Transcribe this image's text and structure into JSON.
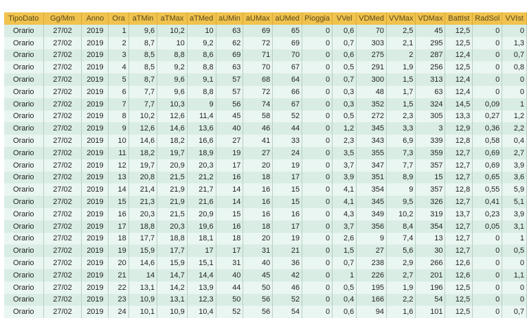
{
  "columns": [
    "TipoDato",
    "Gg/Mm",
    "Anno",
    "Ora",
    "aTMin",
    "aTMax",
    "aTMed",
    "aUMin",
    "aUMax",
    "aUMed",
    "Pioggia",
    "VVel",
    "VDMed",
    "VVMax",
    "VDMax",
    "BattIst",
    "RadSol",
    "VVIst"
  ],
  "rows": [
    [
      "Orario",
      "27/02",
      "2019",
      "1",
      "9,6",
      "10,2",
      "10",
      "63",
      "69",
      "65",
      "0",
      "0,6",
      "70",
      "2,5",
      "45",
      "12,5",
      "0",
      "0"
    ],
    [
      "Orario",
      "27/02",
      "2019",
      "2",
      "8,7",
      "10",
      "9,2",
      "62",
      "72",
      "69",
      "0",
      "0,7",
      "303",
      "2,1",
      "295",
      "12,5",
      "0",
      "1,3"
    ],
    [
      "Orario",
      "27/02",
      "2019",
      "3",
      "8,5",
      "8,8",
      "8,6",
      "69",
      "71",
      "70",
      "0",
      "0,6",
      "275",
      "2",
      "287",
      "12,4",
      "0",
      "0,7"
    ],
    [
      "Orario",
      "27/02",
      "2019",
      "4",
      "8,5",
      "9,2",
      "8,8",
      "63",
      "70",
      "67",
      "0",
      "0,5",
      "291",
      "1,9",
      "256",
      "12,5",
      "0",
      "0,8"
    ],
    [
      "Orario",
      "27/02",
      "2019",
      "5",
      "8,7",
      "9,6",
      "9,1",
      "57",
      "68",
      "64",
      "0",
      "0,7",
      "300",
      "1,5",
      "313",
      "12,4",
      "0",
      "0"
    ],
    [
      "Orario",
      "27/02",
      "2019",
      "6",
      "7,7",
      "9,6",
      "8,8",
      "57",
      "72",
      "66",
      "0",
      "0,3",
      "48",
      "1,7",
      "63",
      "12,4",
      "0",
      "0"
    ],
    [
      "Orario",
      "27/02",
      "2019",
      "7",
      "7,7",
      "10,3",
      "9",
      "56",
      "74",
      "67",
      "0",
      "0,3",
      "352",
      "1,5",
      "324",
      "14,5",
      "0,09",
      "1"
    ],
    [
      "Orario",
      "27/02",
      "2019",
      "8",
      "10,2",
      "12,6",
      "11,4",
      "45",
      "58",
      "52",
      "0",
      "0,5",
      "272",
      "2,3",
      "305",
      "13,3",
      "0,27",
      "1,2"
    ],
    [
      "Orario",
      "27/02",
      "2019",
      "9",
      "12,6",
      "14,6",
      "13,6",
      "40",
      "46",
      "44",
      "0",
      "1,2",
      "345",
      "3,3",
      "3",
      "12,9",
      "0,36",
      "2,2"
    ],
    [
      "Orario",
      "27/02",
      "2019",
      "10",
      "14,6",
      "18,2",
      "16,6",
      "27",
      "41",
      "33",
      "0",
      "2,3",
      "343",
      "6,9",
      "339",
      "12,8",
      "0,58",
      "0,4"
    ],
    [
      "Orario",
      "27/02",
      "2019",
      "11",
      "18,2",
      "19,7",
      "18,9",
      "19",
      "27",
      "24",
      "0",
      "3,5",
      "355",
      "7,3",
      "359",
      "12,7",
      "0,69",
      "2,7"
    ],
    [
      "Orario",
      "27/02",
      "2019",
      "12",
      "19,7",
      "20,9",
      "20,3",
      "17",
      "20",
      "19",
      "0",
      "3,7",
      "347",
      "7,7",
      "357",
      "12,7",
      "0,69",
      "3,9"
    ],
    [
      "Orario",
      "27/02",
      "2019",
      "13",
      "20,8",
      "21,5",
      "21,2",
      "16",
      "18",
      "17",
      "0",
      "3,9",
      "351",
      "8,9",
      "15",
      "12,7",
      "0,65",
      "3,6"
    ],
    [
      "Orario",
      "27/02",
      "2019",
      "14",
      "21,4",
      "21,9",
      "21,7",
      "14",
      "16",
      "15",
      "0",
      "4,1",
      "354",
      "9",
      "357",
      "12,8",
      "0,55",
      "5,9"
    ],
    [
      "Orario",
      "27/02",
      "2019",
      "15",
      "21,3",
      "21,9",
      "21,6",
      "14",
      "16",
      "15",
      "0",
      "4,1",
      "345",
      "9,5",
      "326",
      "12,7",
      "0,41",
      "5,1"
    ],
    [
      "Orario",
      "27/02",
      "2019",
      "16",
      "20,3",
      "21,5",
      "20,9",
      "15",
      "16",
      "16",
      "0",
      "4,3",
      "349",
      "10,2",
      "319",
      "13,7",
      "0,23",
      "3,9"
    ],
    [
      "Orario",
      "27/02",
      "2019",
      "17",
      "18,8",
      "20,3",
      "19,6",
      "16",
      "18",
      "17",
      "0",
      "3,7",
      "356",
      "8,4",
      "354",
      "12,7",
      "0,05",
      "3,1"
    ],
    [
      "Orario",
      "27/02",
      "2019",
      "18",
      "17,7",
      "18,8",
      "18,1",
      "18",
      "20",
      "19",
      "0",
      "2,6",
      "9",
      "7,4",
      "13",
      "12,7",
      "0",
      "1"
    ],
    [
      "Orario",
      "27/02",
      "2019",
      "19",
      "15,9",
      "17,7",
      "17",
      "17",
      "31",
      "21",
      "0",
      "1,5",
      "27",
      "5,6",
      "30",
      "12,7",
      "0",
      "0,5"
    ],
    [
      "Orario",
      "27/02",
      "2019",
      "20",
      "14,6",
      "15,9",
      "15,1",
      "31",
      "40",
      "36",
      "0",
      "0,7",
      "238",
      "2,9",
      "266",
      "12,6",
      "0",
      "0"
    ],
    [
      "Orario",
      "27/02",
      "2019",
      "21",
      "14",
      "14,7",
      "14,4",
      "40",
      "45",
      "42",
      "0",
      "1",
      "226",
      "2,7",
      "201",
      "12,6",
      "0",
      "1,1"
    ],
    [
      "Orario",
      "27/02",
      "2019",
      "22",
      "13,1",
      "14,2",
      "13,9",
      "44",
      "50",
      "46",
      "0",
      "0,5",
      "195",
      "1,9",
      "196",
      "12,5",
      "0",
      "0"
    ],
    [
      "Orario",
      "27/02",
      "2019",
      "23",
      "10,9",
      "13,1",
      "12,3",
      "50",
      "56",
      "52",
      "0",
      "0,4",
      "166",
      "2,2",
      "54",
      "12,5",
      "0",
      "0"
    ],
    [
      "Orario",
      "27/02",
      "2019",
      "24",
      "10,1",
      "10,9",
      "10,4",
      "52",
      "56",
      "54",
      "0",
      "0,6",
      "94",
      "1,6",
      "101",
      "12,5",
      "0",
      "0,7"
    ]
  ]
}
